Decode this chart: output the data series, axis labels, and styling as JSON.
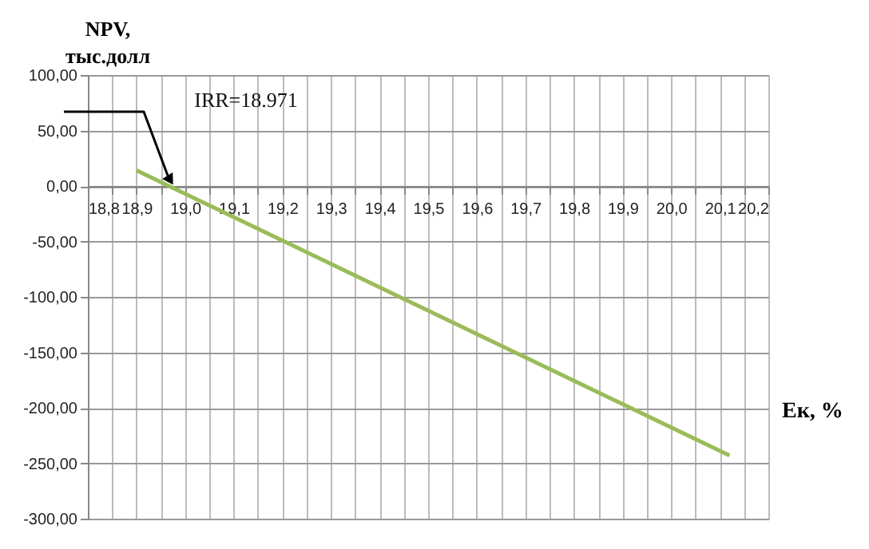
{
  "chart_data": {
    "type": "line",
    "ylabel": "NPV,\nтыс.долл",
    "xlabel": "Ек, %",
    "annotations": [
      "IRR=18.971"
    ],
    "series": [
      {
        "color": "#9bbb59",
        "x": [
          18.9,
          20.12
        ],
        "values": [
          14,
          -243
        ]
      }
    ],
    "xlim": [
      18.8,
      20.2
    ],
    "xticks": [
      {
        "value": 18.8,
        "label": "18,8"
      },
      {
        "value": 18.85,
        "label": null
      },
      {
        "value": 18.9,
        "label": "18,9"
      },
      {
        "value": 18.95,
        "label": null
      },
      {
        "value": 19.0,
        "label": "19,0"
      },
      {
        "value": 19.05,
        "label": null
      },
      {
        "value": 19.1,
        "label": "19,1"
      },
      {
        "value": 19.15,
        "label": null
      },
      {
        "value": 19.2,
        "label": "19,2"
      },
      {
        "value": 19.25,
        "label": null
      },
      {
        "value": 19.3,
        "label": "19,3"
      },
      {
        "value": 19.35,
        "label": null
      },
      {
        "value": 19.4,
        "label": "19,4"
      },
      {
        "value": 19.45,
        "label": null
      },
      {
        "value": 19.5,
        "label": "19,5"
      },
      {
        "value": 19.55,
        "label": null
      },
      {
        "value": 19.6,
        "label": "19,6"
      },
      {
        "value": 19.65,
        "label": null
      },
      {
        "value": 19.7,
        "label": "19,7"
      },
      {
        "value": 19.75,
        "label": null
      },
      {
        "value": 19.8,
        "label": "19,8"
      },
      {
        "value": 19.85,
        "label": null
      },
      {
        "value": 19.9,
        "label": "19,9"
      },
      {
        "value": 19.95,
        "label": null
      },
      {
        "value": 20.0,
        "label": "20,0"
      },
      {
        "value": 20.05,
        "label": null
      },
      {
        "value": 20.1,
        "label": "20,1"
      },
      {
        "value": 20.15,
        "label": null
      },
      {
        "value": 20.2,
        "label": "20,2"
      }
    ],
    "ylim": [
      -300,
      100
    ],
    "yticks": [
      {
        "value": -300,
        "label": "-300,00"
      },
      {
        "value": -250,
        "label": "-250,00"
      },
      {
        "value": -200,
        "label": "-200,00"
      },
      {
        "value": -150,
        "label": "-150,00"
      },
      {
        "value": -100,
        "label": "-100,00"
      },
      {
        "value": -50,
        "label": "-50,00"
      },
      {
        "value": 0,
        "label": "0,00"
      },
      {
        "value": 50,
        "label": "50,00"
      },
      {
        "value": 100,
        "label": "100,00"
      }
    ],
    "grid": true,
    "marker": "none",
    "line_style": "solid"
  }
}
